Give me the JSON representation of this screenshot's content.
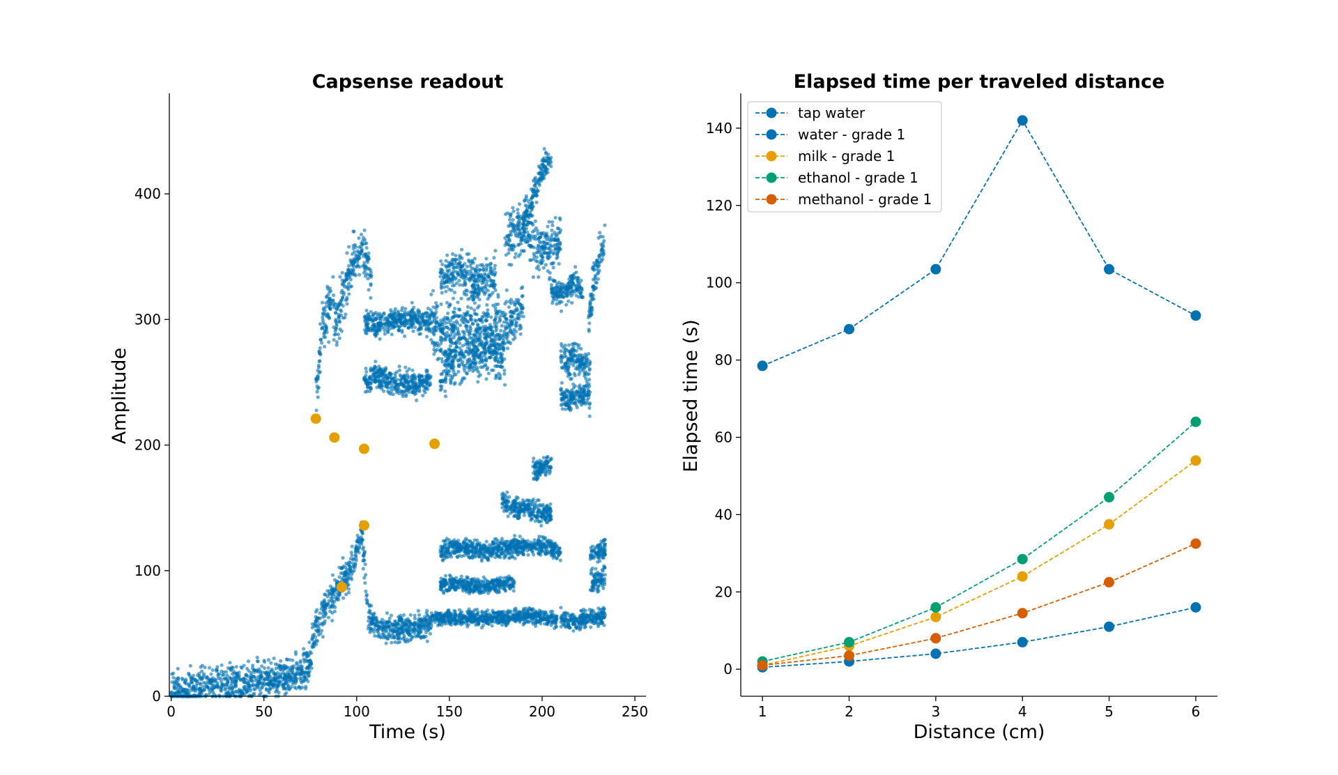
{
  "chart_data": [
    {
      "type": "scatter",
      "title": "Capsense readout",
      "xlabel": "Time (s)",
      "ylabel": "Amplitude",
      "xlim": [
        -1,
        256
      ],
      "ylim": [
        0,
        480
      ],
      "xticks": [
        0,
        50,
        100,
        150,
        200,
        250
      ],
      "yticks": [
        0,
        100,
        200,
        300,
        400
      ],
      "grid": false,
      "colors": {
        "readout": "#0072b2",
        "markers": "#e69f00"
      },
      "readout_bands": [
        {
          "x": [
            0,
            10,
            20,
            30,
            40,
            50,
            60,
            70,
            76
          ],
          "y": [
            4,
            6,
            8,
            9,
            11,
            12,
            14,
            18,
            30
          ],
          "spread": 14
        },
        {
          "x": [
            76,
            80,
            84,
            88,
            92,
            96,
            100,
            103,
            106
          ],
          "y": [
            45,
            60,
            72,
            80,
            92,
            100,
            115,
            130,
            70
          ],
          "spread": 14
        },
        {
          "x": [
            106,
            112,
            120,
            130,
            140
          ],
          "y": [
            62,
            55,
            52,
            55,
            58
          ],
          "spread": 10
        },
        {
          "x": [
            140,
            150,
            160,
            170,
            180,
            190,
            200,
            208
          ],
          "y": [
            62,
            63,
            62,
            62,
            63,
            64,
            63,
            62
          ],
          "spread": 6
        },
        {
          "x": [
            145,
            150,
            160,
            170,
            180,
            190,
            200,
            210
          ],
          "y": [
            115,
            118,
            117,
            116,
            118,
            119,
            120,
            115
          ],
          "spread": 7
        },
        {
          "x": [
            145,
            155,
            165,
            175,
            185
          ],
          "y": [
            88,
            90,
            88,
            89,
            90
          ],
          "spread": 6
        },
        {
          "x": [
            178,
            185,
            195,
            205
          ],
          "y": [
            155,
            150,
            148,
            145
          ],
          "spread": 8
        },
        {
          "x": [
            195,
            200,
            205
          ],
          "y": [
            180,
            182,
            185
          ],
          "spread": 8
        },
        {
          "x": [
            210,
            214,
            218,
            222,
            226,
            230,
            234
          ],
          "y": [
            62,
            60,
            60,
            61,
            62,
            62,
            65
          ],
          "spread": 7
        },
        {
          "x": [
            226,
            230,
            234
          ],
          "y": [
            90,
            92,
            95
          ],
          "spread": 8
        },
        {
          "x": [
            226,
            230,
            234
          ],
          "y": [
            110,
            115,
            118
          ],
          "spread": 8
        },
        {
          "x": [
            78,
            82,
            86,
            90,
            94,
            98,
            100,
            104,
            108
          ],
          "y": [
            240,
            300,
            310,
            300,
            330,
            345,
            350,
            355,
            330
          ],
          "spread": 20
        },
        {
          "x": [
            104,
            110,
            120,
            130,
            140
          ],
          "y": [
            300,
            295,
            300,
            300,
            298
          ],
          "spread": 10
        },
        {
          "x": [
            104,
            110,
            120,
            130,
            140
          ],
          "y": [
            250,
            255,
            250,
            248,
            250
          ],
          "spread": 10
        },
        {
          "x": [
            140,
            150,
            160,
            170,
            180,
            190
          ],
          "y": [
            295,
            290,
            300,
            290,
            295,
            310
          ],
          "spread": 22
        },
        {
          "x": [
            145,
            150,
            160,
            170,
            180
          ],
          "y": [
            255,
            265,
            270,
            275,
            270
          ],
          "spread": 20
        },
        {
          "x": [
            145,
            155,
            165,
            175
          ],
          "y": [
            335,
            340,
            330,
            335
          ],
          "spread": 15
        },
        {
          "x": [
            180,
            190,
            200,
            210
          ],
          "y": [
            365,
            370,
            355,
            365
          ],
          "spread": 20
        },
        {
          "x": [
            190,
            195,
            200,
            205
          ],
          "y": [
            380,
            395,
            420,
            430
          ],
          "spread": 12
        },
        {
          "x": [
            205,
            210,
            214,
            218,
            222
          ],
          "y": [
            325,
            320,
            325,
            330,
            320
          ],
          "spread": 10
        },
        {
          "x": [
            210,
            214,
            218,
            222,
            226
          ],
          "y": [
            270,
            265,
            270,
            265,
            260
          ],
          "spread": 12
        },
        {
          "x": [
            210,
            214,
            218,
            222,
            226
          ],
          "y": [
            240,
            235,
            238,
            240,
            236
          ],
          "spread": 10
        },
        {
          "x": [
            225,
            228,
            231,
            234
          ],
          "y": [
            300,
            330,
            350,
            365
          ],
          "spread": 15
        }
      ],
      "markers": [
        {
          "x": 78,
          "y": 221
        },
        {
          "x": 88,
          "y": 206
        },
        {
          "x": 92,
          "y": 87
        },
        {
          "x": 104,
          "y": 197
        },
        {
          "x": 104,
          "y": 136
        },
        {
          "x": 142,
          "y": 201
        }
      ]
    },
    {
      "type": "line",
      "title": "Elapsed time per traveled distance",
      "xlabel": "Distance (cm)",
      "ylabel": "Elapsed time (s)",
      "xlim": [
        0.75,
        6.25
      ],
      "ylim": [
        -7,
        149
      ],
      "xticks": [
        1,
        2,
        3,
        4,
        5,
        6
      ],
      "yticks": [
        0,
        20,
        40,
        60,
        80,
        100,
        120,
        140
      ],
      "grid": false,
      "legend_position": "upper-left",
      "x": [
        1,
        2,
        3,
        4,
        5,
        6
      ],
      "series": [
        {
          "name": "tap water",
          "color": "#0072b2",
          "values": [
            78.5,
            88,
            103.5,
            142,
            103.5,
            91.5
          ]
        },
        {
          "name": "water - grade 1",
          "color": "#0072b2",
          "values": [
            0.5,
            2,
            4,
            7,
            11,
            16
          ]
        },
        {
          "name": "milk - grade 1",
          "color": "#e69f00",
          "values": [
            1,
            6,
            13.5,
            24,
            37.5,
            54
          ]
        },
        {
          "name": "ethanol - grade 1",
          "color": "#009e73",
          "values": [
            2,
            7,
            16,
            28.5,
            44.5,
            64
          ]
        },
        {
          "name": "methanol - grade 1",
          "color": "#d55e00",
          "values": [
            1,
            3.5,
            8,
            14.5,
            22.5,
            32.5
          ]
        }
      ]
    }
  ]
}
